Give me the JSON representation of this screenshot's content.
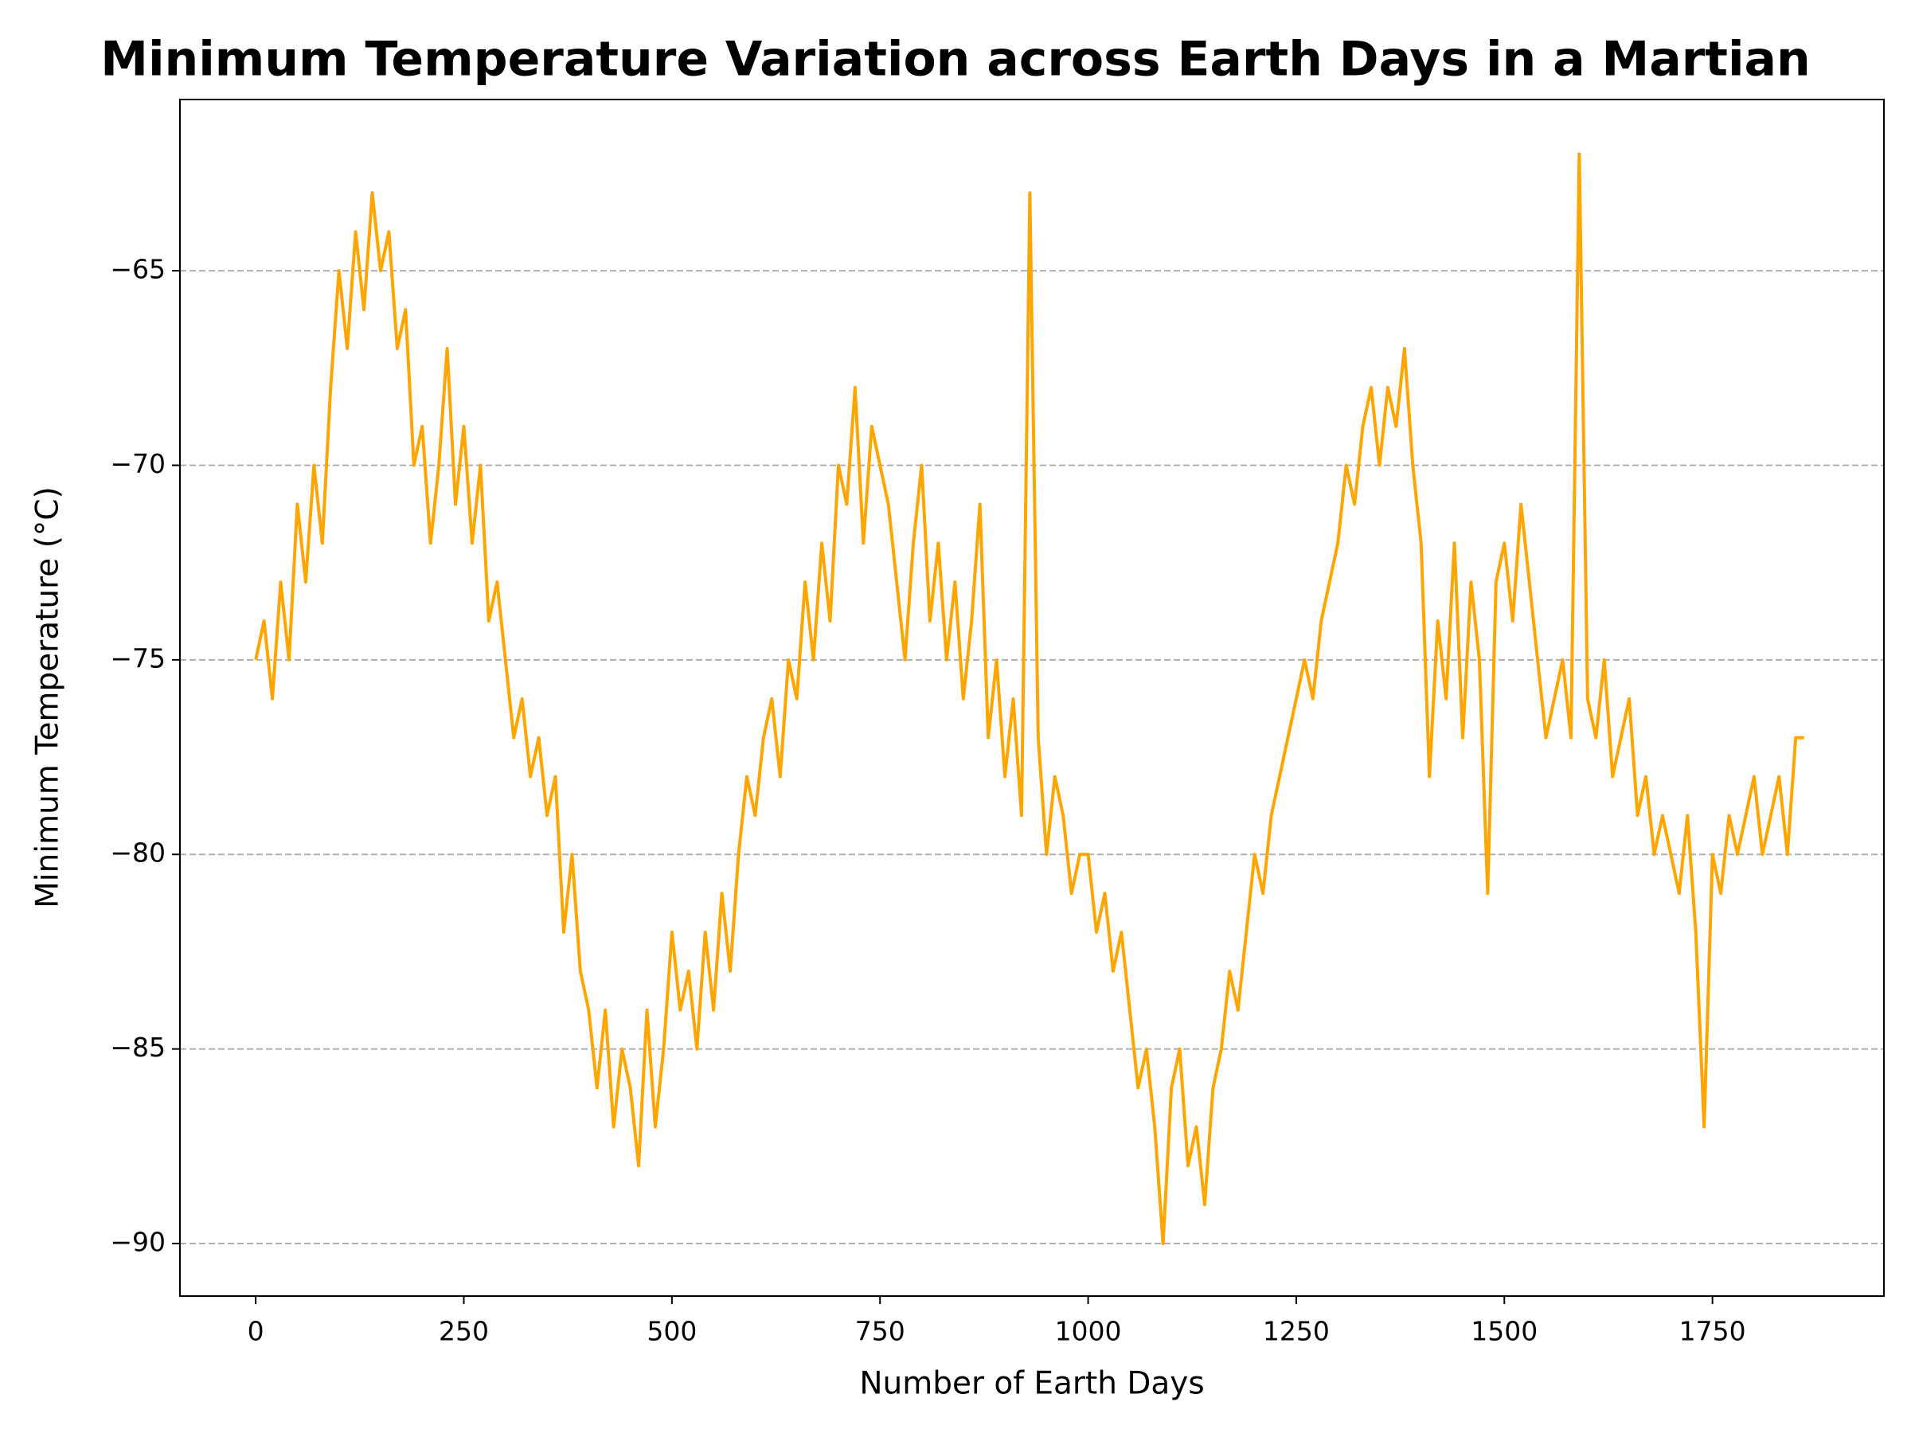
{
  "chart_data": {
    "type": "line",
    "title": "Minimum Temperature Variation across Earth Days in a Martian",
    "xlabel": "Number of Earth Days",
    "ylabel": "Minimum Temperature (°C)",
    "color": "#ffa500",
    "grid": true,
    "xlim": [
      -91,
      1956
    ],
    "ylim": [
      -91.35,
      -60.6
    ],
    "xticks": [
      0,
      250,
      500,
      750,
      1000,
      1250,
      1500,
      1750
    ],
    "yticks": [
      {
        "value": -90,
        "label": "−90"
      },
      {
        "value": -85,
        "label": "−85"
      },
      {
        "value": -80,
        "label": "−80"
      },
      {
        "value": -75,
        "label": "−75"
      },
      {
        "value": -70,
        "label": "−70"
      },
      {
        "value": -65,
        "label": "−65"
      }
    ],
    "x": [
      0,
      10,
      20,
      30,
      40,
      50,
      60,
      70,
      80,
      90,
      100,
      110,
      120,
      130,
      140,
      150,
      160,
      170,
      180,
      190,
      200,
      210,
      220,
      230,
      240,
      250,
      260,
      270,
      280,
      290,
      300,
      310,
      320,
      330,
      340,
      350,
      360,
      370,
      380,
      390,
      400,
      410,
      420,
      430,
      440,
      450,
      460,
      470,
      480,
      490,
      500,
      510,
      520,
      530,
      540,
      550,
      560,
      570,
      580,
      590,
      600,
      610,
      620,
      630,
      640,
      650,
      660,
      670,
      680,
      690,
      700,
      710,
      720,
      730,
      740,
      750,
      760,
      770,
      780,
      790,
      800,
      810,
      820,
      830,
      840,
      850,
      860,
      870,
      880,
      890,
      900,
      910,
      920,
      930,
      940,
      950,
      960,
      970,
      980,
      990,
      1000,
      1010,
      1020,
      1030,
      1040,
      1050,
      1060,
      1070,
      1080,
      1090,
      1100,
      1110,
      1120,
      1130,
      1140,
      1150,
      1160,
      1170,
      1180,
      1190,
      1200,
      1210,
      1220,
      1230,
      1240,
      1250,
      1260,
      1270,
      1280,
      1290,
      1300,
      1310,
      1320,
      1330,
      1340,
      1350,
      1360,
      1370,
      1380,
      1390,
      1400,
      1410,
      1420,
      1430,
      1440,
      1450,
      1460,
      1470,
      1480,
      1490,
      1500,
      1510,
      1520,
      1530,
      1540,
      1550,
      1560,
      1570,
      1580,
      1590,
      1600,
      1610,
      1620,
      1630,
      1640,
      1650,
      1660,
      1670,
      1680,
      1690,
      1700,
      1710,
      1720,
      1730,
      1740,
      1750,
      1760,
      1770,
      1780,
      1790,
      1800,
      1810,
      1820,
      1830,
      1840,
      1850,
      1860
    ],
    "values": [
      -75,
      -74,
      -76,
      -73,
      -75,
      -71,
      -73,
      -70,
      -72,
      -68,
      -65,
      -67,
      -64,
      -66,
      -63,
      -65,
      -64,
      -67,
      -66,
      -70,
      -69,
      -72,
      -70,
      -67,
      -71,
      -69,
      -72,
      -70,
      -74,
      -73,
      -75,
      -77,
      -76,
      -78,
      -77,
      -79,
      -78,
      -82,
      -80,
      -83,
      -84,
      -86,
      -84,
      -87,
      -85,
      -86,
      -88,
      -84,
      -87,
      -85,
      -82,
      -84,
      -83,
      -85,
      -82,
      -84,
      -81,
      -83,
      -80,
      -78,
      -79,
      -77,
      -76,
      -78,
      -75,
      -76,
      -73,
      -75,
      -72,
      -74,
      -70,
      -71,
      -68,
      -72,
      -69,
      -70,
      -71,
      -73,
      -75,
      -72,
      -70,
      -74,
      -72,
      -75,
      -73,
      -76,
      -74,
      -71,
      -77,
      -75,
      -78,
      -76,
      -79,
      -63,
      -77,
      -80,
      -78,
      -79,
      -81,
      -80,
      -80,
      -82,
      -81,
      -83,
      -82,
      -84,
      -86,
      -85,
      -87,
      -90,
      -86,
      -85,
      -88,
      -87,
      -89,
      -86,
      -85,
      -83,
      -84,
      -82,
      -80,
      -81,
      -79,
      -78,
      -77,
      -76,
      -75,
      -76,
      -74,
      -73,
      -72,
      -70,
      -71,
      -69,
      -68,
      -70,
      -68,
      -69,
      -67,
      -70,
      -72,
      -78,
      -74,
      -76,
      -72,
      -77,
      -73,
      -75,
      -81,
      -73,
      -72,
      -74,
      -71,
      -73,
      -75,
      -77,
      -76,
      -75,
      -77,
      -62,
      -76,
      -77,
      -75,
      -78,
      -77,
      -76,
      -79,
      -78,
      -80,
      -79,
      -80,
      -81,
      -79,
      -82,
      -87,
      -80,
      -81,
      -79,
      -80,
      -79,
      -78,
      -80,
      -79,
      -78,
      -80,
      -77,
      -77
    ]
  }
}
